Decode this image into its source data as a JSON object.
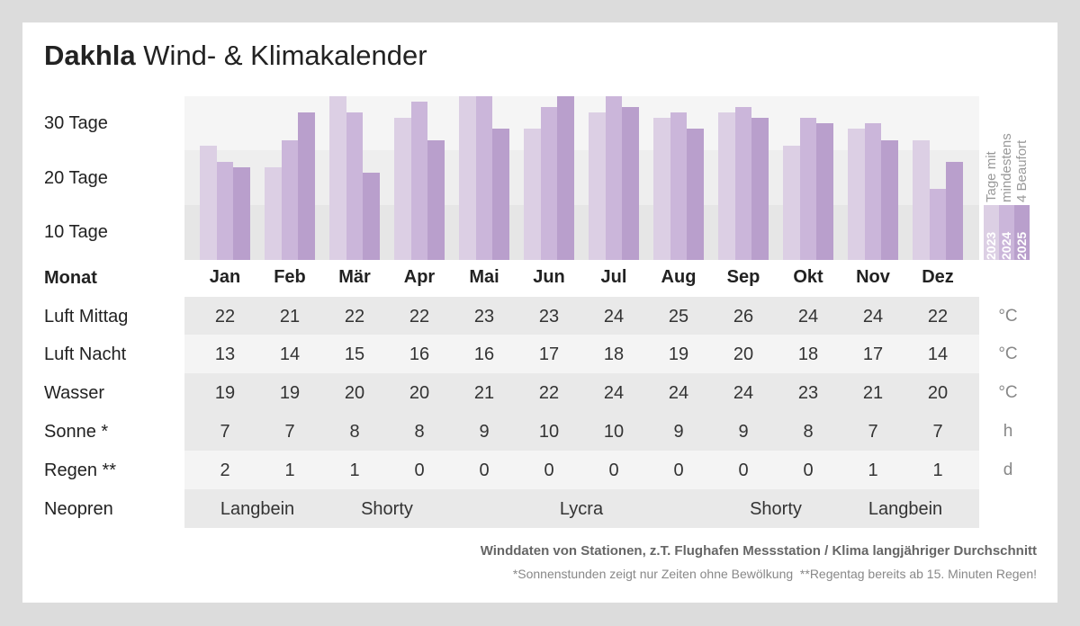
{
  "title": {
    "bold": "Dakhla",
    "rest": "Wind- & Klimakalender"
  },
  "chart_data": {
    "type": "bar",
    "categories": [
      "Jan",
      "Feb",
      "Mär",
      "Apr",
      "Mai",
      "Jun",
      "Jul",
      "Aug",
      "Sep",
      "Okt",
      "Nov",
      "Dez"
    ],
    "series": [
      {
        "name": "2023",
        "color": "#dccfe4",
        "values": [
          21,
          17,
          30,
          26,
          30,
          24,
          27,
          26,
          27,
          21,
          24,
          22
        ]
      },
      {
        "name": "2024",
        "color": "#cbb6da",
        "values": [
          18,
          22,
          27,
          29,
          30,
          28,
          30,
          27,
          28,
          26,
          25,
          13
        ]
      },
      {
        "name": "2025",
        "color": "#b99fcc",
        "values": [
          17,
          27,
          16,
          22,
          24,
          30,
          28,
          24,
          26,
          25,
          22,
          18
        ]
      }
    ],
    "ylabel": "Tage mit mindestens 4 Beaufort",
    "ylabel_lines": [
      "Tage mit",
      "mindestens",
      "4 Beaufort"
    ],
    "ytick_labels": [
      "10 Tage",
      "20 Tage",
      "30 Tage"
    ],
    "ylim": [
      0,
      30
    ],
    "legend": "right",
    "grid": "bands"
  },
  "table": {
    "header_label": "Monat",
    "months": [
      "Jan",
      "Feb",
      "Mär",
      "Apr",
      "Mai",
      "Jun",
      "Jul",
      "Aug",
      "Sep",
      "Okt",
      "Nov",
      "Dez"
    ],
    "rows": [
      {
        "label": "Luft Mittag",
        "unit": "°C",
        "values": [
          "22",
          "21",
          "22",
          "22",
          "23",
          "23",
          "24",
          "25",
          "26",
          "24",
          "24",
          "22"
        ]
      },
      {
        "label": "Luft Nacht",
        "unit": "°C",
        "values": [
          "13",
          "14",
          "15",
          "16",
          "16",
          "17",
          "18",
          "19",
          "20",
          "18",
          "17",
          "14"
        ]
      },
      {
        "label": "Wasser",
        "unit": "°C",
        "values": [
          "19",
          "19",
          "20",
          "20",
          "21",
          "22",
          "24",
          "24",
          "24",
          "23",
          "21",
          "20"
        ]
      },
      {
        "label": "Sonne *",
        "unit": "h",
        "values": [
          "7",
          "7",
          "8",
          "8",
          "9",
          "10",
          "10",
          "9",
          "9",
          "8",
          "7",
          "7"
        ]
      },
      {
        "label": "Regen **",
        "unit": "d",
        "values": [
          "2",
          "1",
          "1",
          "0",
          "0",
          "0",
          "0",
          "0",
          "0",
          "0",
          "1",
          "1"
        ]
      }
    ],
    "neopren": {
      "label": "Neopren",
      "spans": [
        {
          "text": "Langbein",
          "from": 0,
          "to": 1
        },
        {
          "text": "Shorty",
          "from": 2,
          "to": 3
        },
        {
          "text": "Lycra",
          "from": 4,
          "to": 7
        },
        {
          "text": "Shorty",
          "from": 8,
          "to": 9
        },
        {
          "text": "Langbein",
          "from": 10,
          "to": 11
        }
      ]
    }
  },
  "footer": {
    "source": "Winddaten von Stationen, z.T. Flughafen Messstation / Klima langjähriger Durchschnitt",
    "notes": "*Sonnenstunden zeigt nur Zeiten ohne Bewölkung  **Regentag bereits ab 15. Minuten Regen!"
  }
}
